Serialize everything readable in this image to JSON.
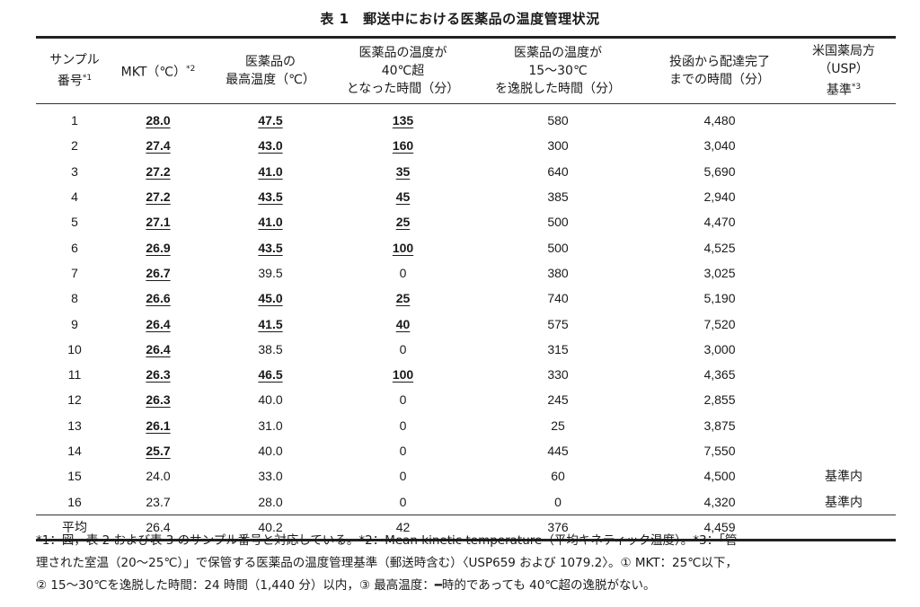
{
  "title": "表 1　郵送中における医薬品の温度管理状況",
  "headers": [
    {
      "lines": [
        "サンプル",
        "番号"
      ],
      "sup": "*1"
    },
    {
      "lines": [
        "MKT（℃）"
      ],
      "sup": "*2"
    },
    {
      "lines": [
        "医薬品の",
        "最高温度（℃）"
      ],
      "sup": ""
    },
    {
      "lines": [
        "医薬品の温度が",
        "40℃超",
        "となった時間（分）"
      ],
      "sup": ""
    },
    {
      "lines": [
        "医薬品の温度が",
        "15～30℃",
        "を逸脱した時間（分）"
      ],
      "sup": ""
    },
    {
      "lines": [
        "投函から配達完了",
        "までの時間（分）"
      ],
      "sup": ""
    },
    {
      "lines": [
        "米国薬局方",
        "（USP）",
        "基準"
      ],
      "sup": "*3"
    }
  ],
  "rows": [
    {
      "cells": [
        "1",
        "28.0",
        "47.5",
        "135",
        "580",
        "4,480",
        ""
      ],
      "flags": [
        false,
        true,
        true,
        true,
        false,
        false,
        false
      ]
    },
    {
      "cells": [
        "2",
        "27.4",
        "43.0",
        "160",
        "300",
        "3,040",
        ""
      ],
      "flags": [
        false,
        true,
        true,
        true,
        false,
        false,
        false
      ]
    },
    {
      "cells": [
        "3",
        "27.2",
        "41.0",
        "35",
        "640",
        "5,690",
        ""
      ],
      "flags": [
        false,
        true,
        true,
        true,
        false,
        false,
        false
      ]
    },
    {
      "cells": [
        "4",
        "27.2",
        "43.5",
        "45",
        "385",
        "2,940",
        ""
      ],
      "flags": [
        false,
        true,
        true,
        true,
        false,
        false,
        false
      ]
    },
    {
      "cells": [
        "5",
        "27.1",
        "41.0",
        "25",
        "500",
        "4,470",
        ""
      ],
      "flags": [
        false,
        true,
        true,
        true,
        false,
        false,
        false
      ]
    },
    {
      "cells": [
        "6",
        "26.9",
        "43.5",
        "100",
        "500",
        "4,525",
        ""
      ],
      "flags": [
        false,
        true,
        true,
        true,
        false,
        false,
        false
      ]
    },
    {
      "cells": [
        "7",
        "26.7",
        "39.5",
        "0",
        "380",
        "3,025",
        ""
      ],
      "flags": [
        false,
        true,
        false,
        false,
        false,
        false,
        false
      ]
    },
    {
      "cells": [
        "8",
        "26.6",
        "45.0",
        "25",
        "740",
        "5,190",
        ""
      ],
      "flags": [
        false,
        true,
        true,
        true,
        false,
        false,
        false
      ]
    },
    {
      "cells": [
        "9",
        "26.4",
        "41.5",
        "40",
        "575",
        "7,520",
        ""
      ],
      "flags": [
        false,
        true,
        true,
        true,
        false,
        false,
        false
      ]
    },
    {
      "cells": [
        "10",
        "26.4",
        "38.5",
        "0",
        "315",
        "3,000",
        ""
      ],
      "flags": [
        false,
        true,
        false,
        false,
        false,
        false,
        false
      ]
    },
    {
      "cells": [
        "11",
        "26.3",
        "46.5",
        "100",
        "330",
        "4,365",
        ""
      ],
      "flags": [
        false,
        true,
        true,
        true,
        false,
        false,
        false
      ]
    },
    {
      "cells": [
        "12",
        "26.3",
        "40.0",
        "0",
        "245",
        "2,855",
        ""
      ],
      "flags": [
        false,
        true,
        false,
        false,
        false,
        false,
        false
      ]
    },
    {
      "cells": [
        "13",
        "26.1",
        "31.0",
        "0",
        "25",
        "3,875",
        ""
      ],
      "flags": [
        false,
        true,
        false,
        false,
        false,
        false,
        false
      ]
    },
    {
      "cells": [
        "14",
        "25.7",
        "40.0",
        "0",
        "445",
        "7,550",
        ""
      ],
      "flags": [
        false,
        true,
        false,
        false,
        false,
        false,
        false
      ]
    },
    {
      "cells": [
        "15",
        "24.0",
        "33.0",
        "0",
        "60",
        "4,500",
        "基準内"
      ],
      "flags": [
        false,
        false,
        false,
        false,
        false,
        false,
        false
      ]
    },
    {
      "cells": [
        "16",
        "23.7",
        "28.0",
        "0",
        "0",
        "4,320",
        "基準内"
      ],
      "flags": [
        false,
        false,
        false,
        false,
        false,
        false,
        false
      ]
    }
  ],
  "average": [
    "平均",
    "26.4",
    "40.2",
    "42",
    "376",
    "4,459",
    ""
  ],
  "footnotes": [
    "*1：図，表 2 および表 3 のサンプル番号と対応している。*2：Mean kinetic temperature（平均キネティック温度）。*3：「管",
    "理された室温（20～25℃）」で保管する医薬品の温度管理基準（郵送時含む）〈USP659 および 1079.2〉。① MKT：25℃以下，",
    "② 15～30℃を逸脱した時間：24 時間（1,440 分）以内，③ 最高温度：━時的であっても 40℃超の逸脱がない。"
  ]
}
